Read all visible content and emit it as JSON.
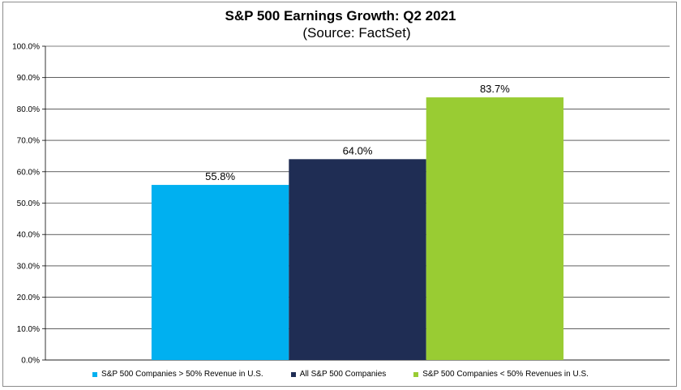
{
  "chart_data": {
    "type": "bar",
    "title": "S&P 500 Earnings Growth:  Q2 2021",
    "subtitle": "(Source: FactSet)",
    "categories": [
      "S&P 500 Companies > 50% Revenue in U.S.",
      "All S&P 500 Companies",
      "S&P 500 Companies < 50% Revenues in U.S."
    ],
    "values": [
      55.8,
      64.0,
      83.7
    ],
    "data_labels": [
      "55.8%",
      "64.0%",
      "83.7%"
    ],
    "colors": [
      "#00b0f0",
      "#1f2d54",
      "#99cc33"
    ],
    "ylim": [
      0,
      100
    ],
    "yticks": [
      "0.0%",
      "10.0%",
      "20.0%",
      "30.0%",
      "40.0%",
      "50.0%",
      "60.0%",
      "70.0%",
      "80.0%",
      "90.0%",
      "100.0%"
    ],
    "grid": true,
    "legend_position": "bottom"
  }
}
